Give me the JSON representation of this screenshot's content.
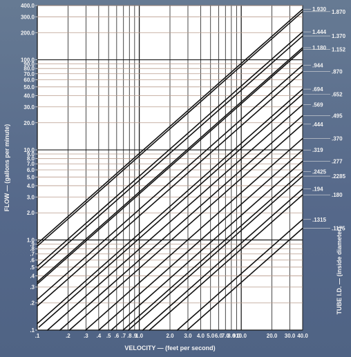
{
  "chart_data": {
    "type": "line",
    "title": "",
    "xlabel": "VELOCITY — (feet per second)",
    "ylabel": "FLOW — (gallons per minute)",
    "right_label": "TUBE I.D. — (inside diameter)",
    "x_scale": "log",
    "y_scale": "log",
    "xlim": [
      0.1,
      40.0
    ],
    "ylim": [
      0.1,
      400.0
    ],
    "grid": true,
    "x_ticks": [
      ".1",
      ".2",
      ".3",
      ".4",
      ".5",
      ".6",
      ".7",
      ".8",
      ".9",
      "1.0",
      "2.0",
      "3.0",
      "4.0",
      "5.0",
      "6.0",
      "7.0",
      "8.0",
      "9.0",
      "10.0",
      "20.0",
      "30.0",
      "40.0"
    ],
    "y_ticks": [
      ".1",
      ".2",
      ".3",
      ".4",
      ".5",
      ".6",
      ".7",
      ".8",
      ".9",
      "1.0",
      "2.0",
      "3.0",
      "4.0",
      "5.0",
      "6.0",
      "7.0",
      "8.0",
      "9.0",
      "10.0",
      "20.0",
      "30.0",
      "40.0",
      "50.0",
      "60.0",
      "70.0",
      "80.0",
      "90.0",
      "100.0",
      "200.0",
      "300.0",
      "400.0"
    ],
    "series": [
      {
        "name": "1.930",
        "values": [
          [
            0.1,
            0.912
          ],
          [
            40.0,
            364.7
          ]
        ]
      },
      {
        "name": "1.870",
        "values": [
          [
            0.1,
            0.856
          ],
          [
            40.0,
            342.4
          ]
        ]
      },
      {
        "name": "1.444",
        "values": [
          [
            0.1,
            0.51
          ],
          [
            40.0,
            204.2
          ]
        ]
      },
      {
        "name": "1.370",
        "values": [
          [
            0.1,
            0.459
          ],
          [
            40.0,
            183.8
          ]
        ]
      },
      {
        "name": "1.180",
        "values": [
          [
            0.1,
            0.341
          ],
          [
            40.0,
            136.3
          ]
        ]
      },
      {
        "name": "1.152",
        "values": [
          [
            0.1,
            0.325
          ],
          [
            40.0,
            129.9
          ]
        ]
      },
      {
        "name": ".944",
        "values": [
          [
            0.1,
            0.218
          ],
          [
            40.0,
            87.3
          ]
        ]
      },
      {
        "name": ".870",
        "values": [
          [
            0.1,
            0.185
          ],
          [
            40.0,
            74.1
          ]
        ]
      },
      {
        "name": ".694",
        "values": [
          [
            0.1,
            0.118
          ],
          [
            40.0,
            47.2
          ]
        ]
      },
      {
        "name": ".652",
        "values": [
          [
            0.104,
            0.108
          ],
          [
            40.0,
            41.6
          ]
        ]
      },
      {
        "name": ".569",
        "values": [
          [
            0.126,
            0.1
          ],
          [
            40.0,
            31.7
          ]
        ]
      },
      {
        "name": ".495",
        "values": [
          [
            0.167,
            0.1
          ],
          [
            40.0,
            24.0
          ]
        ]
      },
      {
        "name": ".444",
        "values": [
          [
            0.207,
            0.1
          ],
          [
            40.0,
            19.3
          ]
        ]
      },
      {
        "name": ".370",
        "values": [
          [
            0.298,
            0.1
          ],
          [
            40.0,
            13.4
          ]
        ]
      },
      {
        "name": ".319",
        "values": [
          [
            0.401,
            0.1
          ],
          [
            40.0,
            9.97
          ]
        ]
      },
      {
        "name": ".277",
        "values": [
          [
            0.532,
            0.1
          ],
          [
            40.0,
            7.51
          ]
        ]
      },
      {
        "name": ".2425",
        "values": [
          [
            0.694,
            0.1
          ],
          [
            40.0,
            5.76
          ]
        ]
      },
      {
        "name": ".2285",
        "values": [
          [
            0.782,
            0.1
          ],
          [
            40.0,
            5.11
          ]
        ]
      },
      {
        "name": ".194",
        "values": [
          [
            1.085,
            0.1
          ],
          [
            40.0,
            3.69
          ]
        ]
      },
      {
        "name": ".180",
        "values": [
          [
            1.26,
            0.1
          ],
          [
            40.0,
            3.17
          ]
        ]
      },
      {
        "name": ".1315",
        "values": [
          [
            2.361,
            0.1
          ],
          [
            40.0,
            1.69
          ]
        ]
      },
      {
        "name": ".1175",
        "values": [
          [
            2.957,
            0.1
          ],
          [
            40.0,
            1.35
          ]
        ]
      }
    ]
  }
}
